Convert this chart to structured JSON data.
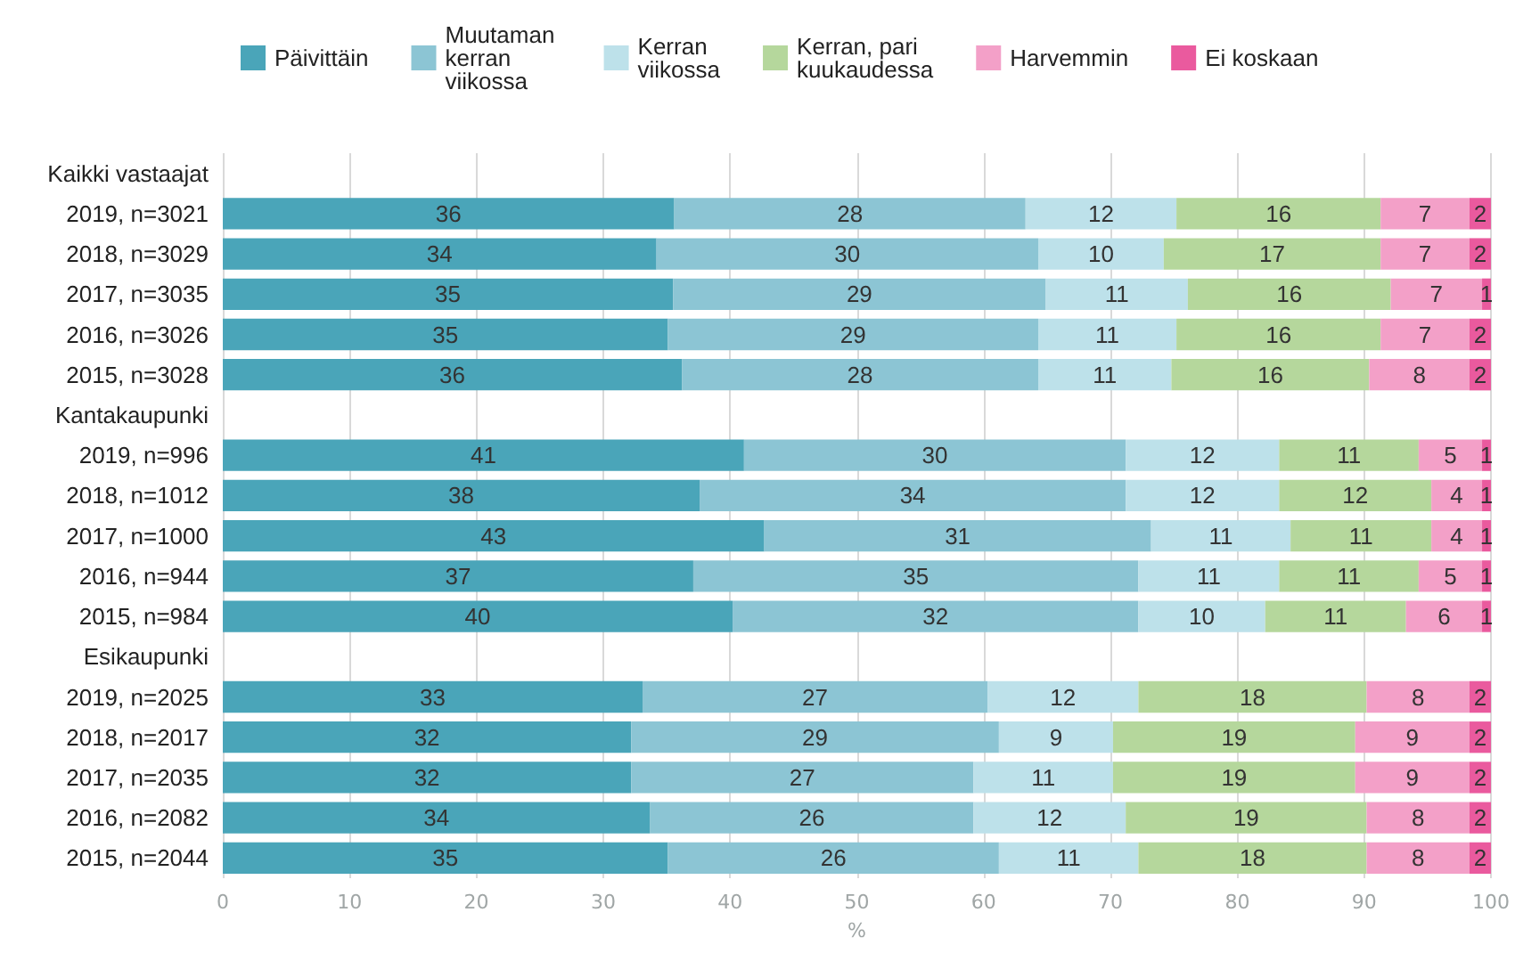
{
  "chart_data": {
    "type": "bar",
    "orientation": "horizontal",
    "stacked": true,
    "xlabel": "%",
    "legend": "top",
    "grid": "x",
    "xlim": [
      0,
      100
    ],
    "xticks": [
      0,
      10,
      20,
      30,
      40,
      50,
      60,
      70,
      80,
      90,
      100
    ],
    "categories": [
      "Kaikki vastaajat",
      "2019, n=3021",
      "2018, n=3029",
      "2017, n=3035",
      "2016, n=3026",
      "2015, n=3028",
      "Kantakaupunki",
      "2019, n=996",
      "2018, n=1012",
      "2017, n=1000",
      "2016, n=944",
      "2015, n=984",
      "Esikaupunki",
      "2019, n=2025",
      "2018, n=2017",
      "2017, n=2035",
      "2016, n=2082",
      "2015, n=2044"
    ],
    "series": [
      {
        "name": "Päivittäin",
        "color": "#4aa5b9",
        "values": [
          null,
          35.6,
          34.2,
          35.5,
          35.1,
          36.2,
          null,
          41.1,
          37.6,
          42.7,
          37.1,
          40.2,
          null,
          33.1,
          32.2,
          32.2,
          33.7,
          35.1
        ],
        "value_labels": [
          null,
          "36",
          "34",
          "35",
          "35",
          "36",
          null,
          "41",
          "38",
          "43",
          "37",
          "40",
          null,
          "33",
          "32",
          "32",
          "34",
          "35"
        ]
      },
      {
        "name": "Muutaman kerran viikossa",
        "color": "#8cc5d4",
        "values": [
          null,
          27.7,
          30.1,
          29.4,
          29.2,
          28.1,
          null,
          30.1,
          33.6,
          30.5,
          35.1,
          32.0,
          null,
          27.2,
          29.0,
          27.0,
          25.5,
          26.1
        ],
        "value_labels": [
          null,
          "28",
          "30",
          "29",
          "29",
          "28",
          null,
          "30",
          "34",
          "31",
          "35",
          "32",
          null,
          "27",
          "29",
          "27",
          "26",
          "26"
        ]
      },
      {
        "name": "Kerran viikossa",
        "color": "#bde1ea",
        "values": [
          null,
          11.9,
          9.9,
          11.2,
          10.9,
          10.5,
          null,
          12.1,
          12.1,
          11.0,
          11.1,
          10.0,
          null,
          11.9,
          9.0,
          11.0,
          12.0,
          11.0
        ],
        "value_labels": [
          null,
          "12",
          "10",
          "11",
          "11",
          "11",
          null,
          "12",
          "12",
          "11",
          "11",
          "10",
          null,
          "12",
          "9",
          "11",
          "12",
          "11"
        ]
      },
      {
        "name": "Kerran, pari kuukaudessa",
        "color": "#b5d79c",
        "values": [
          null,
          16.1,
          17.1,
          16.0,
          16.1,
          15.6,
          null,
          11.0,
          12.0,
          11.1,
          11.0,
          11.1,
          null,
          18.0,
          19.1,
          19.1,
          19.0,
          18.0
        ],
        "value_labels": [
          null,
          "16",
          "17",
          "16",
          "16",
          "16",
          null,
          "11",
          "12",
          "11",
          "11",
          "11",
          null,
          "18",
          "19",
          "19",
          "19",
          "18"
        ]
      },
      {
        "name": "Harvemmin",
        "color": "#f3a0c8",
        "values": [
          null,
          7.0,
          7.0,
          7.2,
          7.0,
          7.9,
          null,
          5.0,
          4.0,
          4.0,
          5.0,
          6.0,
          null,
          8.1,
          9.0,
          9.0,
          8.1,
          8.1
        ],
        "value_labels": [
          null,
          "7",
          "7",
          "7",
          "7",
          "8",
          null,
          "5",
          "4",
          "4",
          "5",
          "6",
          null,
          "8",
          "9",
          "9",
          "8",
          "8"
        ]
      },
      {
        "name": "Ei koskaan",
        "color": "#ea5a9e",
        "values": [
          null,
          1.7,
          1.7,
          0.7,
          1.7,
          1.7,
          null,
          0.7,
          0.7,
          0.7,
          0.7,
          0.7,
          null,
          1.7,
          1.7,
          1.7,
          1.7,
          1.7
        ],
        "value_labels": [
          null,
          "2",
          "2",
          "1",
          "2",
          "2",
          null,
          "1",
          "1",
          "1",
          "1",
          "1",
          null,
          "2",
          "2",
          "2",
          "2",
          "2"
        ]
      }
    ]
  }
}
